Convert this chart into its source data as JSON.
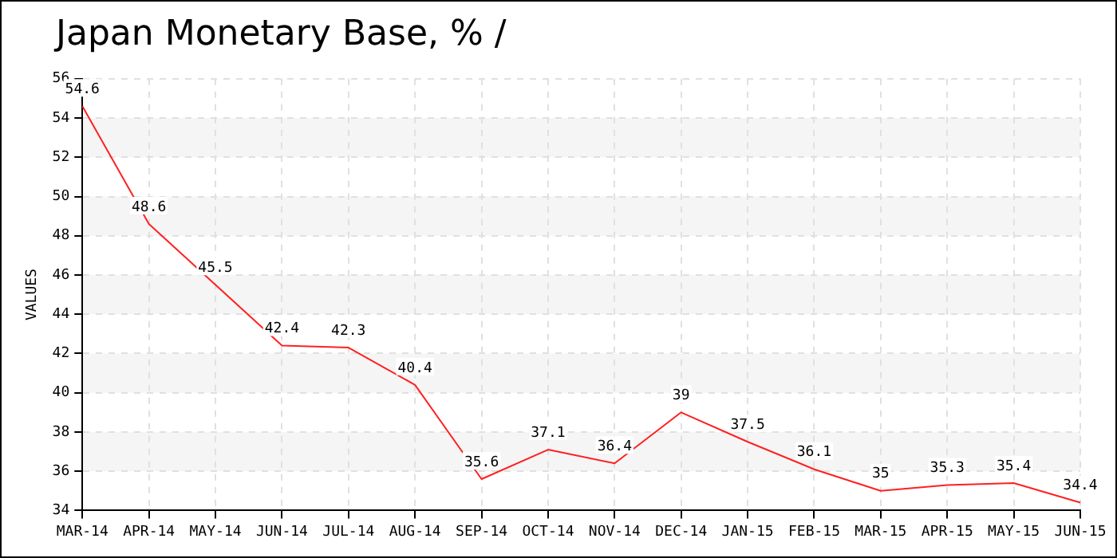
{
  "chart_data": {
    "type": "line",
    "title": "Japan Monetary Base, %  /",
    "ylabel": "VALUES",
    "categories": [
      "MAR-14",
      "APR-14",
      "MAY-14",
      "JUN-14",
      "JUL-14",
      "AUG-14",
      "SEP-14",
      "OCT-14",
      "NOV-14",
      "DEC-14",
      "JAN-15",
      "FEB-15",
      "MAR-15",
      "APR-15",
      "MAY-15",
      "JUN-15"
    ],
    "series": [
      {
        "color": "#ff2020",
        "values": [
          54.6,
          48.6,
          45.5,
          42.4,
          42.3,
          40.4,
          35.6,
          37.1,
          36.4,
          39,
          37.5,
          36.1,
          35,
          35.3,
          35.4,
          34.4
        ]
      }
    ],
    "ylim": [
      34,
      56
    ],
    "yticks": [
      34,
      36,
      38,
      40,
      42,
      44,
      46,
      48,
      50,
      52,
      54,
      56
    ],
    "grid": true,
    "legend": false,
    "marker": "none",
    "line_style": "solid",
    "data_labels": true
  }
}
